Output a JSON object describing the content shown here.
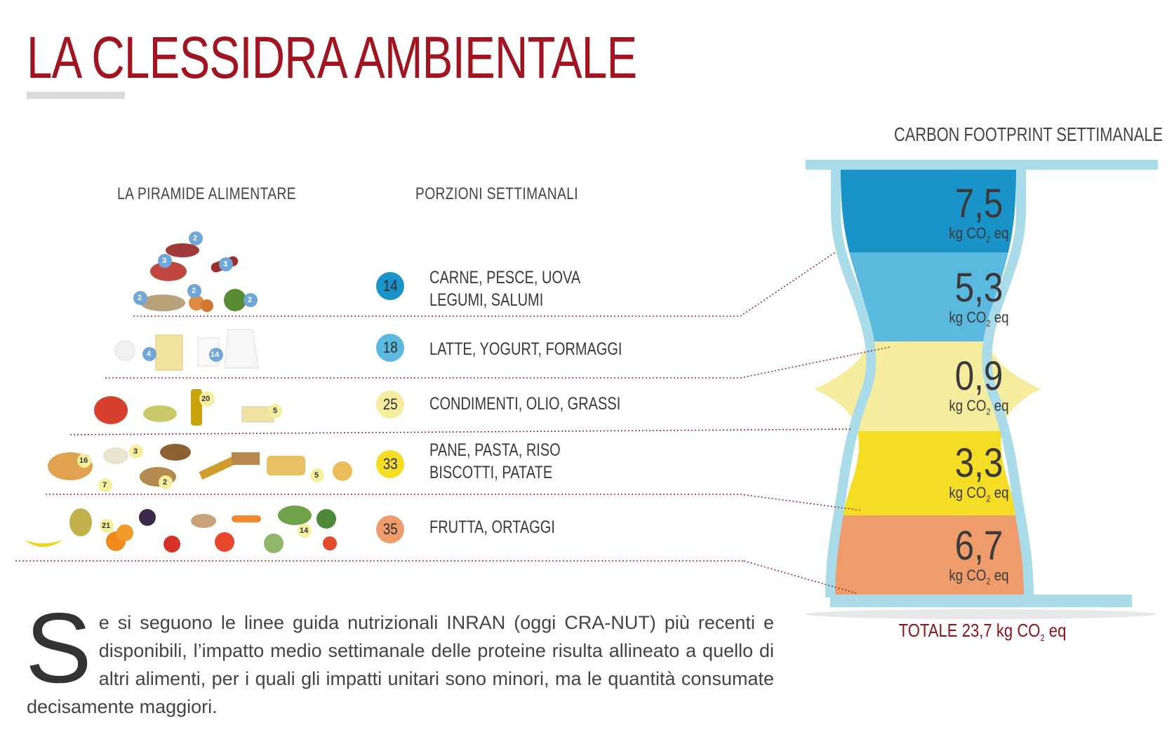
{
  "title": "LA CLESSIDRA AMBIENTALE",
  "headers": {
    "pyramid": "LA PIRAMIDE ALIMENTARE",
    "portions": "PORZIONI SETTIMANALI",
    "carbon": "CARBON FOOTPRINT SETTIMANALE"
  },
  "rows": [
    {
      "portions": "14",
      "line1": "CARNE, PESCE, UOVA",
      "line2": "LEGUMI, SALUMI",
      "color": "#1a93c8",
      "footprint": "7,5"
    },
    {
      "portions": "18",
      "line1": "LATTE, YOGURT, FORMAGGI",
      "line2": "",
      "color": "#5bb9df",
      "footprint": "5,3"
    },
    {
      "portions": "25",
      "line1": "CONDIMENTI, OLIO, GRASSI",
      "line2": "",
      "color": "#f5ec9e",
      "footprint": "0,9"
    },
    {
      "portions": "33",
      "line1": "PANE, PASTA, RISO",
      "line2": "BISCOTTI, PATATE",
      "color": "#f4dd24",
      "footprint": "3,3"
    },
    {
      "portions": "35",
      "line1": "FRUTTA, ORTAGGI",
      "line2": "",
      "color": "#ef9c6c",
      "footprint": "6,7"
    }
  ],
  "pyramid_numbers": {
    "tier1": [
      "2",
      "3",
      "3",
      "2",
      "2",
      "2"
    ],
    "tier2": [
      "4",
      "14"
    ],
    "tier3": [
      "20",
      "5"
    ],
    "tier4": [
      "16",
      "3",
      "7",
      "2",
      "5"
    ],
    "tier5": [
      "21",
      "14"
    ]
  },
  "unit": {
    "prefix": "kg CO",
    "sub": "2",
    "suffix": " eq"
  },
  "total": {
    "label": "TOTALE 23,7",
    "unit_prefix": " kg CO",
    "unit_sub": "2",
    "unit_suffix": " eq"
  },
  "body": {
    "dropcap": "S",
    "text": "e si seguono le linee guida nutrizionali INRAN (oggi CRA-NUT) più recenti e disponibili, l’impatto medio settimanale delle proteine risulta allineato a quello di altri alimenti, per i quali gli impatti unitari sono minori, ma le quantità consumate decisamente maggiori."
  },
  "colors": {
    "title": "#a01520",
    "hourglass_frame": "#a9dbe8",
    "total": "#8b1219"
  }
}
